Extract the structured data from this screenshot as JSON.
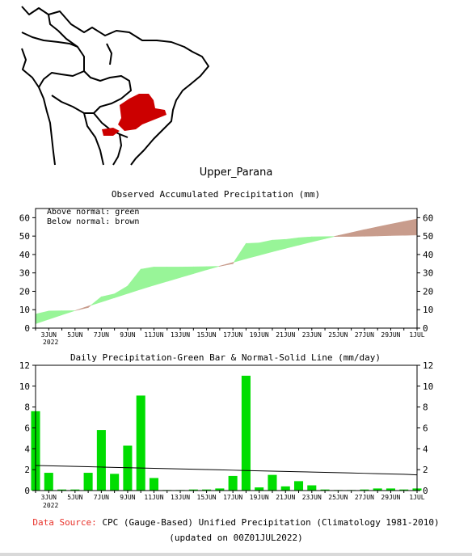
{
  "region_name": "Upper_Parana",
  "footer": {
    "source_label": "Data Source:",
    "source_text": "CPC (Gauge-Based) Unified Precipitation (Climatology 1981-2010)",
    "updated": "(updated on 00Z01JUL2022)"
  },
  "colors": {
    "above_normal": "#98f598",
    "below_normal": "#c89c8c",
    "daily_bar": "#00dd00",
    "region": "#cc0000"
  },
  "chart_data": [
    {
      "type": "area",
      "title": "Observed Accumulated Precipitation (mm)",
      "annotations": [
        "Above normal: green",
        "Below normal: brown"
      ],
      "x": [
        "2JUN",
        "3JUN",
        "4JUN",
        "5JUN",
        "6JUN",
        "7JUN",
        "8JUN",
        "9JUN",
        "10JUN",
        "11JUN",
        "12JUN",
        "13JUN",
        "14JUN",
        "15JUN",
        "16JUN",
        "17JUN",
        "18JUN",
        "19JUN",
        "20JUN",
        "21JUN",
        "22JUN",
        "23JUN",
        "24JUN",
        "25JUN",
        "26JUN",
        "27JUN",
        "28JUN",
        "29JUN",
        "30JUN",
        "1JUL"
      ],
      "x_tick_labels": [
        "3JUN",
        "5JUN",
        "7JUN",
        "9JUN",
        "11JUN",
        "13JUN",
        "15JUN",
        "17JUN",
        "19JUN",
        "21JUN",
        "23JUN",
        "25JUN",
        "27JUN",
        "29JUN",
        "1JUL"
      ],
      "x_sub_label": "2022",
      "series": [
        {
          "values": [
            7.6,
            9.3,
            9.4,
            9.5,
            11.2,
            17.0,
            18.6,
            22.9,
            32.0,
            33.2,
            33.2,
            33.2,
            33.3,
            33.4,
            33.6,
            35.0,
            46.0,
            46.3,
            47.8,
            48.2,
            49.1,
            49.6,
            49.7,
            49.8,
            49.8,
            49.9,
            50.1,
            50.3,
            50.4,
            50.6
          ]
        },
        {
          "values": [
            2.4,
            4.8,
            7.2,
            9.5,
            11.9,
            14.2,
            16.5,
            18.8,
            21.1,
            23.3,
            25.4,
            27.5,
            29.6,
            31.7,
            33.7,
            35.7,
            37.7,
            39.6,
            41.5,
            43.3,
            45.1,
            46.9,
            48.6,
            50.3,
            51.9,
            53.5,
            55.0,
            56.5,
            57.9,
            59.3
          ]
        }
      ],
      "ylim": [
        0,
        65
      ],
      "yticks": [
        0,
        10,
        20,
        30,
        40,
        50,
        60
      ]
    },
    {
      "type": "bar",
      "title": "Daily Precipitation-Green Bar & Normal-Solid Line (mm/day)",
      "categories": [
        "2JUN",
        "3JUN",
        "4JUN",
        "5JUN",
        "6JUN",
        "7JUN",
        "8JUN",
        "9JUN",
        "10JUN",
        "11JUN",
        "12JUN",
        "13JUN",
        "14JUN",
        "15JUN",
        "16JUN",
        "17JUN",
        "18JUN",
        "19JUN",
        "20JUN",
        "21JUN",
        "22JUN",
        "23JUN",
        "24JUN",
        "25JUN",
        "26JUN",
        "27JUN",
        "28JUN",
        "29JUN",
        "30JUN",
        "1JUL"
      ],
      "x_tick_labels": [
        "3JUN",
        "5JUN",
        "7JUN",
        "9JUN",
        "11JUN",
        "13JUN",
        "15JUN",
        "17JUN",
        "19JUN",
        "21JUN",
        "23JUN",
        "25JUN",
        "27JUN",
        "29JUN",
        "1JUL"
      ],
      "x_sub_label": "2022",
      "series": [
        {
          "type": "bar",
          "values": [
            7.6,
            1.7,
            0.1,
            0.1,
            1.7,
            5.8,
            1.6,
            4.3,
            9.1,
            1.2,
            0.05,
            0.05,
            0.1,
            0.1,
            0.2,
            1.4,
            11.0,
            0.3,
            1.5,
            0.4,
            0.9,
            0.5,
            0.1,
            0.05,
            0.05,
            0.1,
            0.2,
            0.2,
            0.1,
            0.2
          ]
        },
        {
          "type": "line",
          "values": [
            2.4,
            2.37,
            2.34,
            2.31,
            2.28,
            2.25,
            2.22,
            2.19,
            2.16,
            2.13,
            2.1,
            2.07,
            2.04,
            2.01,
            1.98,
            1.95,
            1.92,
            1.89,
            1.86,
            1.83,
            1.8,
            1.77,
            1.74,
            1.71,
            1.68,
            1.65,
            1.62,
            1.59,
            1.56,
            1.5
          ]
        }
      ],
      "ylim": [
        0,
        12
      ],
      "yticks": [
        0,
        2,
        4,
        6,
        8,
        10,
        12
      ]
    }
  ]
}
